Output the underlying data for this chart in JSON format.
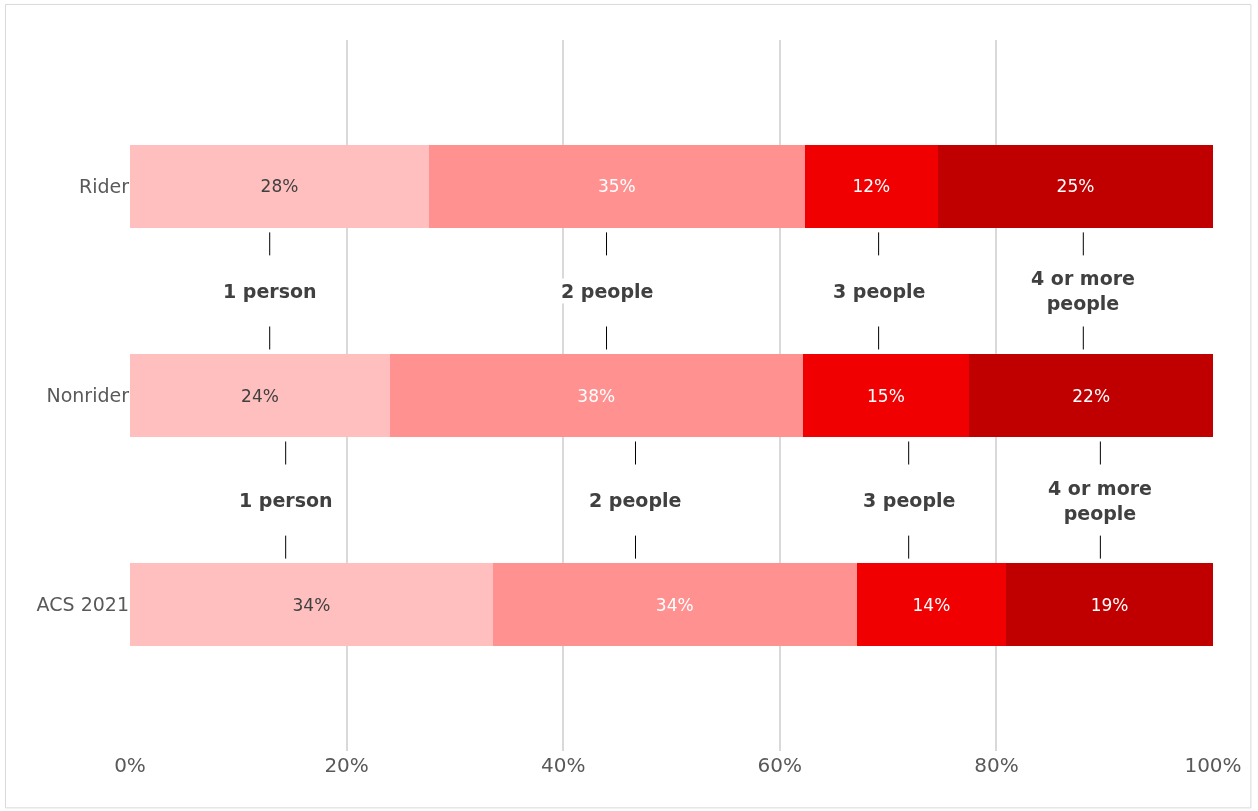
{
  "chart_data": {
    "type": "bar",
    "orientation": "horizontal",
    "stacked": true,
    "categories": [
      "Rider",
      "Nonrider",
      "ACS 2021"
    ],
    "series": [
      {
        "name": "1 person",
        "color": "#ffbfbf",
        "values": [
          27.6,
          24.0,
          33.5
        ],
        "value_labels": [
          "28%",
          "24%",
          "34%"
        ]
      },
      {
        "name": "2 people",
        "color": "#ff9191",
        "values": [
          34.7,
          38.1,
          33.6
        ],
        "value_labels": [
          "35%",
          "38%",
          "34%"
        ]
      },
      {
        "name": "3 people",
        "color": "#f00000",
        "values": [
          12.3,
          15.4,
          13.8
        ],
        "value_labels": [
          "12%",
          "15%",
          "14%"
        ]
      },
      {
        "name": "4 or more people",
        "color": "#c00000",
        "values": [
          25.4,
          22.5,
          19.1
        ],
        "value_labels": [
          "25%",
          "22%",
          "19%"
        ]
      }
    ],
    "xlim": [
      0,
      100
    ],
    "xticks": [
      {
        "value": 0,
        "label": "0%"
      },
      {
        "value": 20,
        "label": "20%"
      },
      {
        "value": 40,
        "label": "40%"
      },
      {
        "value": 60,
        "label": "60%"
      },
      {
        "value": 80,
        "label": "80%"
      },
      {
        "value": 100,
        "label": "100%"
      }
    ],
    "grid": "x",
    "legend": false
  }
}
